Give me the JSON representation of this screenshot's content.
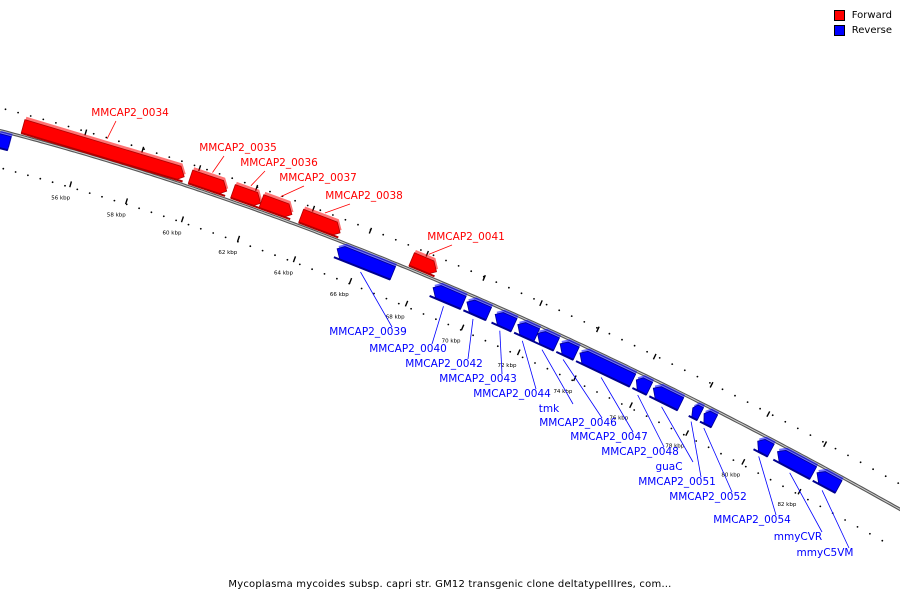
{
  "legend": [
    {
      "label": "Forward",
      "color": "#ff0000"
    },
    {
      "label": "Reverse",
      "color": "#0000ff"
    }
  ],
  "caption": "Mycoplasma mycoides subsp. capri str. GM12 transgenic clone deltatypeIIIres, com…",
  "colors": {
    "forward": "#ff0000",
    "forward_dark": "#b00000",
    "reverse": "#0000ff",
    "reverse_dark": "#00008f",
    "backbone": "#777777"
  },
  "scale": {
    "start_kbp": 53.0,
    "end_kbp": 85.0
  },
  "tick_labels": [
    {
      "label": "56 kbp",
      "kbp": 56
    },
    {
      "label": "58 kbp",
      "kbp": 58
    },
    {
      "label": "60 kbp",
      "kbp": 60
    },
    {
      "label": "62 kbp",
      "kbp": 62
    },
    {
      "label": "64 kbp",
      "kbp": 64
    },
    {
      "label": "66 kbp",
      "kbp": 66
    },
    {
      "label": "68 kbp",
      "kbp": 68
    },
    {
      "label": "70 kbp",
      "kbp": 70
    },
    {
      "label": "72 kbp",
      "kbp": 72
    },
    {
      "label": "74 kbp",
      "kbp": 74
    },
    {
      "label": "76 kbp",
      "kbp": 76
    },
    {
      "label": "78 kbp",
      "kbp": 78
    },
    {
      "label": "80 kbp",
      "kbp": 80
    },
    {
      "label": "82 kbp",
      "kbp": 82
    }
  ],
  "genes": [
    {
      "name": "",
      "strand": "reverse",
      "start_kbp": 53.0,
      "end_kbp": 53.6
    },
    {
      "name": "MMCAP2_0034",
      "strand": "forward",
      "start_kbp": 53.9,
      "end_kbp": 59.6
    },
    {
      "name": "MMCAP2_0035",
      "strand": "forward",
      "start_kbp": 59.8,
      "end_kbp": 61.1
    },
    {
      "name": "MMCAP2_0036",
      "strand": "forward",
      "start_kbp": 61.3,
      "end_kbp": 62.3
    },
    {
      "name": "MMCAP2_0037",
      "strand": "forward",
      "start_kbp": 62.3,
      "end_kbp": 63.4
    },
    {
      "name": "MMCAP2_0038",
      "strand": "forward",
      "start_kbp": 63.7,
      "end_kbp": 65.1
    },
    {
      "name": "MMCAP2_0039",
      "strand": "reverse",
      "start_kbp": 65.2,
      "end_kbp": 67.2
    },
    {
      "name": "MMCAP2_0041",
      "strand": "forward",
      "start_kbp": 67.6,
      "end_kbp": 68.5
    },
    {
      "name": "MMCAP2_0040",
      "strand": "reverse",
      "start_kbp": 68.6,
      "end_kbp": 69.7
    },
    {
      "name": "MMCAP2_0042",
      "strand": "reverse",
      "start_kbp": 69.8,
      "end_kbp": 70.6
    },
    {
      "name": "MMCAP2_0043",
      "strand": "reverse",
      "start_kbp": 70.8,
      "end_kbp": 71.5
    },
    {
      "name": "MMCAP2_0044",
      "strand": "reverse",
      "start_kbp": 71.6,
      "end_kbp": 72.3
    },
    {
      "name": "tmk",
      "strand": "reverse",
      "start_kbp": 72.3,
      "end_kbp": 73.0
    },
    {
      "name": "MMCAP2_0046",
      "strand": "reverse",
      "start_kbp": 73.1,
      "end_kbp": 73.7
    },
    {
      "name": "MMCAP2_0047",
      "strand": "reverse",
      "start_kbp": 73.8,
      "end_kbp": 75.7
    },
    {
      "name": "MMCAP2_0048",
      "strand": "reverse",
      "start_kbp": 75.8,
      "end_kbp": 76.3
    },
    {
      "name": "guaC",
      "strand": "reverse",
      "start_kbp": 76.4,
      "end_kbp": 77.4
    },
    {
      "name": "MMCAP2_0051",
      "strand": "reverse",
      "start_kbp": 77.8,
      "end_kbp": 78.1
    },
    {
      "name": "MMCAP2_0052",
      "strand": "reverse",
      "start_kbp": 78.2,
      "end_kbp": 78.6
    },
    {
      "name": "MMCAP2_0054",
      "strand": "reverse",
      "start_kbp": 80.1,
      "end_kbp": 80.6
    },
    {
      "name": "mmyCVR",
      "strand": "reverse",
      "start_kbp": 80.8,
      "end_kbp": 82.1
    },
    {
      "name": "mmyC5VM",
      "strand": "reverse",
      "start_kbp": 82.2,
      "end_kbp": 83.0
    }
  ]
}
